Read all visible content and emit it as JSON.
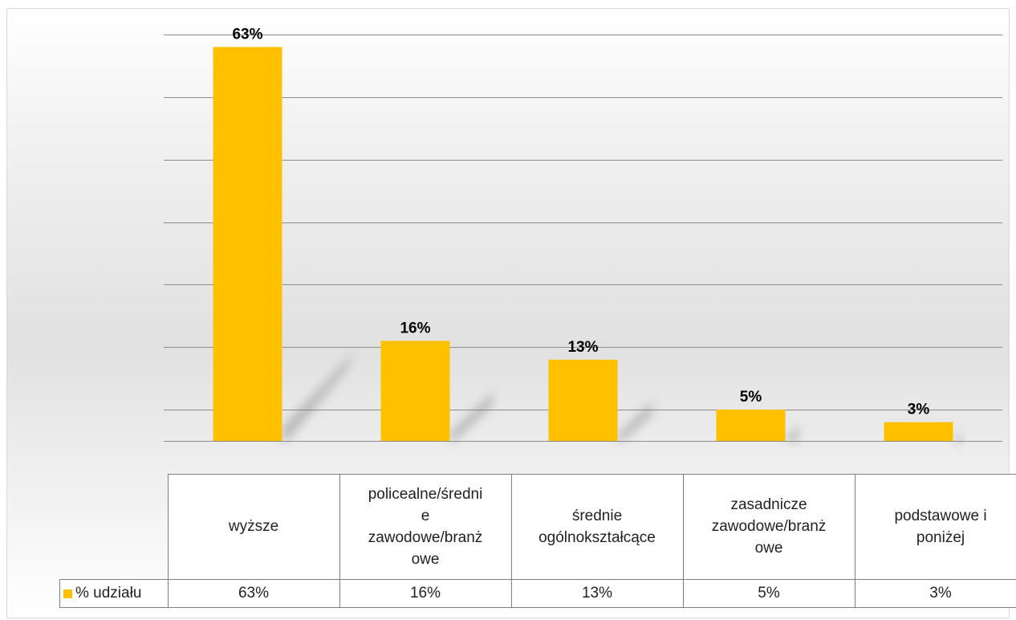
{
  "chart_data": {
    "type": "bar",
    "categories": [
      "wyższe",
      "policealne/średnie zawodowe/branżowe",
      "średnie ogólnokształcące",
      "zasadnicze zawodowe/branżowe",
      "podstawowe i poniżej"
    ],
    "category_lines": [
      [
        "wyższe"
      ],
      [
        "policealne/średni",
        "e",
        "zawodowe/branż",
        "owe"
      ],
      [
        "średnie",
        "ogólnokształcące"
      ],
      [
        "zasadnicze",
        "zawodowe/branż",
        "owe"
      ],
      [
        "podstawowe i",
        "poniżej"
      ]
    ],
    "series": [
      {
        "name": "% udziału",
        "values": [
          63,
          16,
          13,
          5,
          3
        ],
        "labels": [
          "63%",
          "16%",
          "13%",
          "5%",
          "3%"
        ]
      }
    ],
    "ylim": [
      0,
      65
    ],
    "grid": true,
    "legend": "data-table-row",
    "colors": {
      "bar": "#FFC000",
      "grid": "#8c8c8c"
    }
  }
}
